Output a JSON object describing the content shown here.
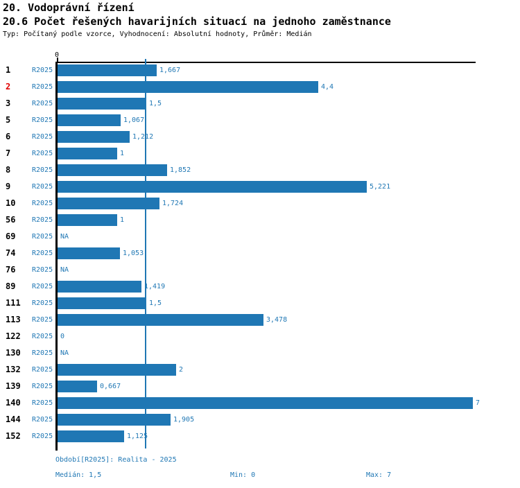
{
  "chart_data": {
    "type": "bar",
    "orientation": "horizontal",
    "title": "20. Vodoprávní řízení",
    "subtitle": "20.6 Počet řešených havarijních situací na jednoho zaměstnance",
    "meta": "Typ: Počítaný podle vzorce, Vyhodnocení: Absolutní hodnoty, Průměr: Medián",
    "series_label": "R2025",
    "axis_zero_label": "0",
    "xlim": [
      0,
      7
    ],
    "median": 1.5,
    "grid": false,
    "legend": "none",
    "categories": [
      "1",
      "2",
      "3",
      "5",
      "6",
      "7",
      "8",
      "9",
      "10",
      "56",
      "69",
      "74",
      "76",
      "89",
      "111",
      "113",
      "122",
      "130",
      "132",
      "139",
      "140",
      "144",
      "152"
    ],
    "values": [
      1.667,
      4.4,
      1.5,
      1.067,
      1.212,
      1,
      1.852,
      5.221,
      1.724,
      1,
      null,
      1.053,
      null,
      1.419,
      1.5,
      3.478,
      0,
      null,
      2,
      0.667,
      7,
      1.905,
      1.125
    ],
    "value_labels": [
      "1,667",
      "4,4",
      "1,5",
      "1,067",
      "1,212",
      "1",
      "1,852",
      "5,221",
      "1,724",
      "1",
      "NA",
      "1,053",
      "NA",
      "1,419",
      "1,5",
      "3,478",
      "0",
      "NA",
      "2",
      "0,667",
      "7",
      "1,905",
      "1,125"
    ],
    "highlighted_category": "2",
    "colors": {
      "accent": "#1f77b4",
      "highlight": "#e00000",
      "axis": "#000000",
      "text": "#000000"
    }
  },
  "footer": {
    "period": "Období[R2025]: Realita - 2025",
    "median": "Medián: 1,5",
    "min": "Min: 0",
    "max": "Max: 7"
  }
}
